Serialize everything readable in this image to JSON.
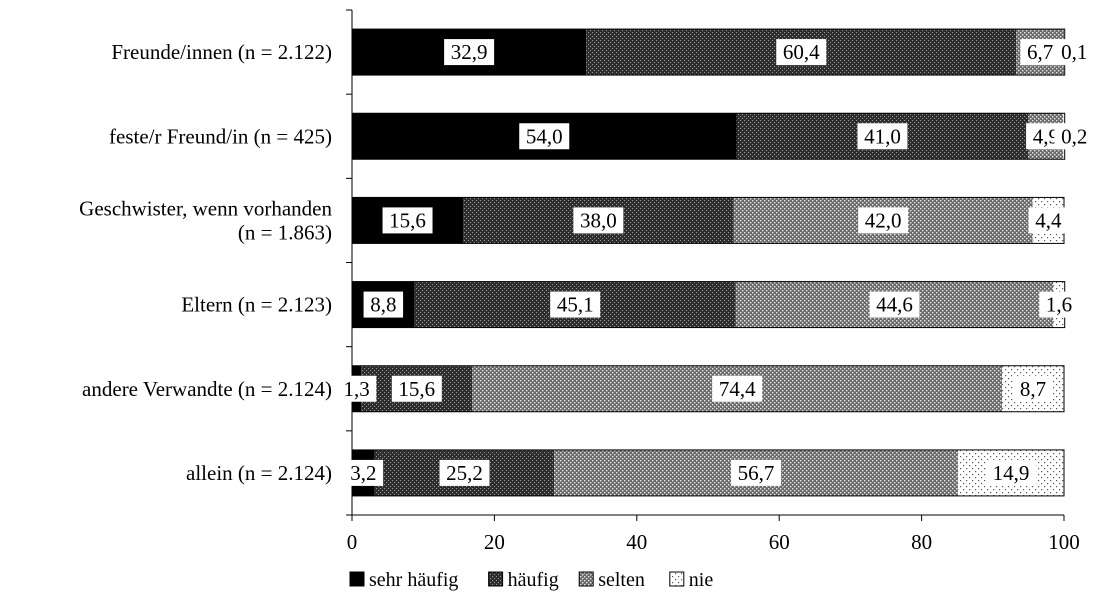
{
  "chart_data": {
    "type": "bar",
    "orientation": "horizontal",
    "stacked": true,
    "categories": [
      [
        "Freunde/innen (n = 2.122)"
      ],
      [
        "feste/r Freund/in (n = 425)"
      ],
      [
        "Geschwister, wenn vorhanden",
        "(n = 1.863)"
      ],
      [
        "Eltern (n = 2.123)"
      ],
      [
        "andere Verwandte (n = 2.124)"
      ],
      [
        "allein (n = 2.124)"
      ]
    ],
    "series": [
      {
        "name": "sehr häufig",
        "values": [
          32.9,
          54.0,
          15.6,
          8.8,
          1.3,
          3.2
        ],
        "labels": [
          "32,9",
          "54,0",
          "15,6",
          "8,8",
          "1,3",
          "3,2"
        ],
        "pattern": "solid"
      },
      {
        "name": "häufig",
        "values": [
          60.4,
          41.0,
          38.0,
          45.1,
          15.6,
          25.2
        ],
        "labels": [
          "60,4",
          "41,0",
          "38,0",
          "45,1",
          "15,6",
          "25,2"
        ],
        "pattern": "dense"
      },
      {
        "name": "selten",
        "values": [
          6.7,
          4.9,
          42.0,
          44.6,
          74.4,
          56.7
        ],
        "labels": [
          "6,7",
          "4,9",
          "42,0",
          "44,6",
          "74,4",
          "56,7"
        ],
        "pattern": "medium"
      },
      {
        "name": "nie",
        "values": [
          0.1,
          0.2,
          4.4,
          1.6,
          8.7,
          14.9
        ],
        "labels": [
          "0,1",
          "0,2",
          "4,4",
          "1,6",
          "8,7",
          "14,9"
        ],
        "pattern": "sparse"
      }
    ],
    "xlim": [
      0,
      100
    ],
    "xticks": [
      "0",
      "20",
      "40",
      "60",
      "80",
      "100"
    ],
    "legend_position": "bottom-left",
    "colors": {
      "solid": "#000000",
      "dense": "#3a3a3a",
      "medium": "#777777",
      "sparse": "#f2f2f2"
    }
  }
}
